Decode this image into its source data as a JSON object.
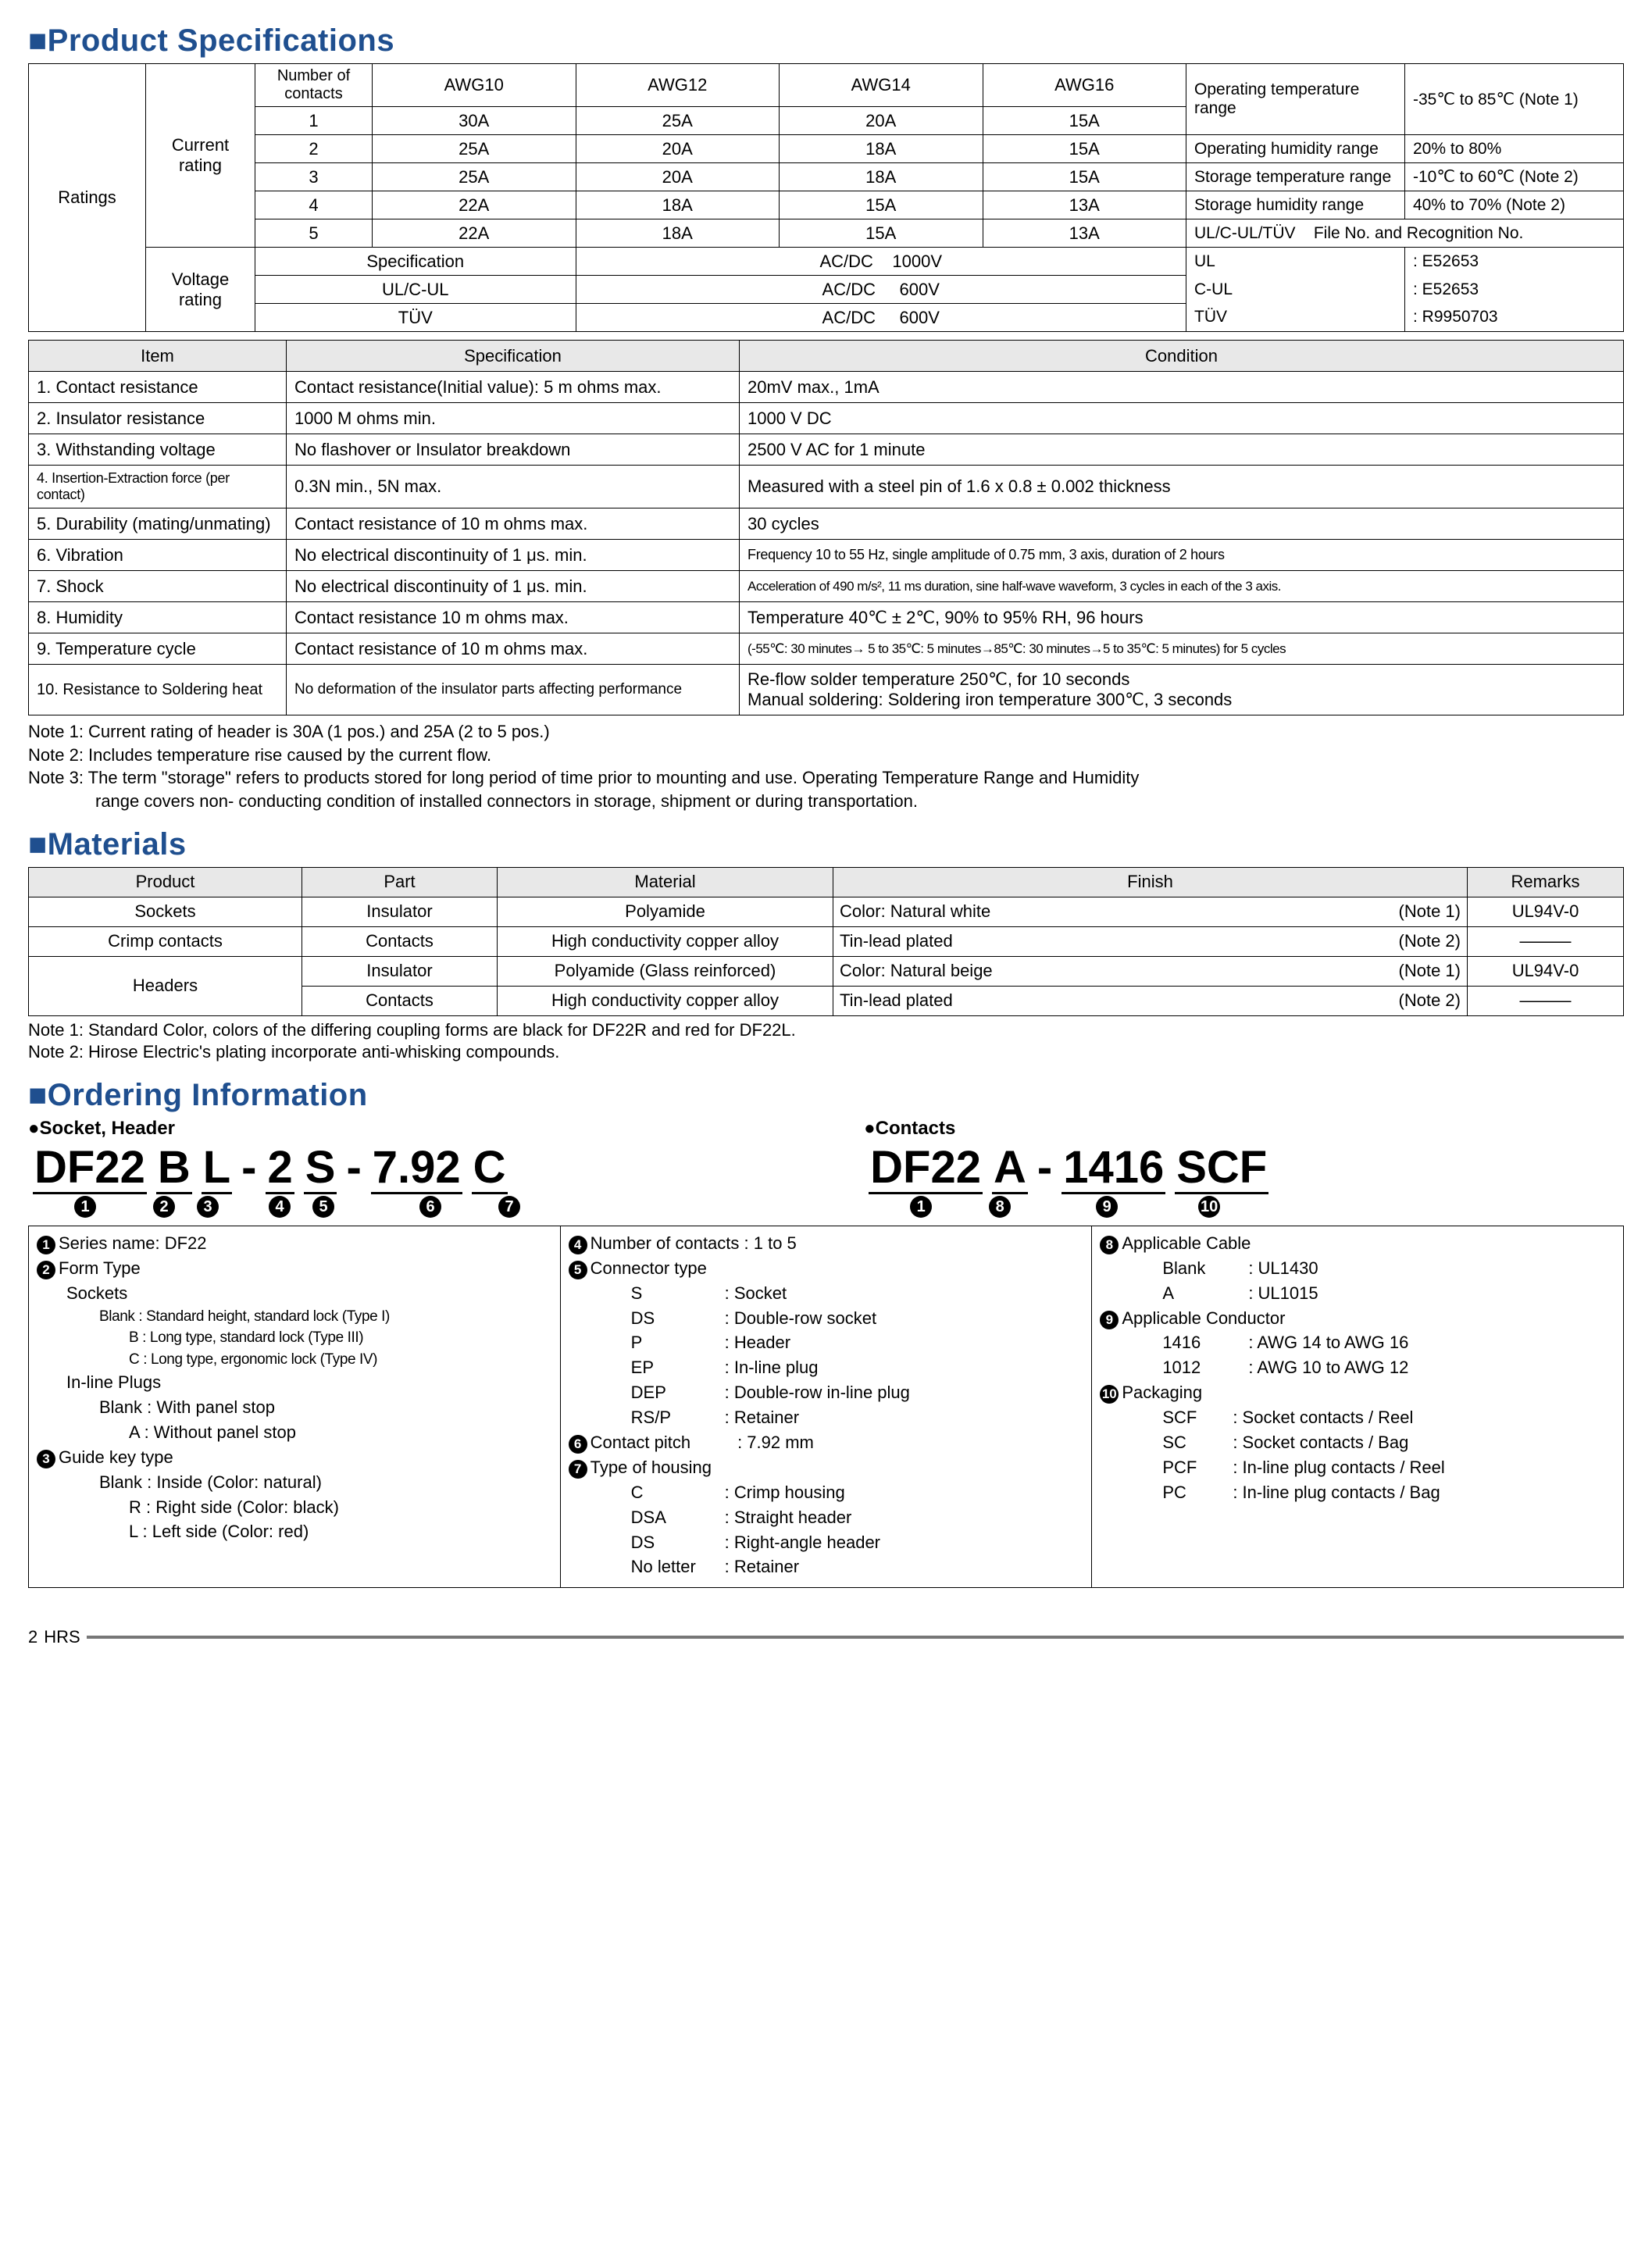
{
  "colors": {
    "heading": "#1f4f8f",
    "border": "#000000",
    "th_bg": "#e8e8e8"
  },
  "sec1_title": "Product Specifications",
  "sec2_title": "Materials",
  "sec3_title": "Ordering Information",
  "ratings": {
    "left_label": "Ratings",
    "current_label": "Current\nrating",
    "voltage_label": "Voltage\nrating",
    "head": [
      "Number of contacts",
      "AWG10",
      "AWG12",
      "AWG14",
      "AWG16"
    ],
    "rows": [
      [
        "1",
        "30A",
        "25A",
        "20A",
        "15A"
      ],
      [
        "2",
        "25A",
        "20A",
        "18A",
        "15A"
      ],
      [
        "3",
        "25A",
        "20A",
        "18A",
        "15A"
      ],
      [
        "4",
        "22A",
        "18A",
        "15A",
        "13A"
      ],
      [
        "5",
        "22A",
        "18A",
        "15A",
        "13A"
      ]
    ],
    "right": {
      "otr_l": "Operating temperature range",
      "otr_v": "-35℃ to 85℃ (Note 1)",
      "ohr_l": "Operating humidity range",
      "ohr_v": "20% to 80%",
      "str_l": "Storage temperature range",
      "str_v": "-10℃ to 60℃ (Note 2)",
      "shr_l": "Storage humidity range",
      "shr_v": "40% to 70% (Note 2)",
      "cert_head": "UL/C-UL/TÜV    File No. and Recognition No.",
      "ul": "UL",
      "ul_v": ": E52653",
      "cul": "C-UL",
      "cul_v": ": E52653",
      "tuv": "TÜV",
      "tuv_v": ": R9950703"
    },
    "volt_head": "Specification",
    "volt_rows": [
      [
        "Specification",
        "AC/DC    1000V"
      ],
      [
        "UL/C-UL",
        "AC/DC     600V"
      ],
      [
        "TÜV",
        "AC/DC     600V"
      ]
    ]
  },
  "spec": {
    "head": [
      "Item",
      "Specification",
      "Condition"
    ],
    "rows": [
      {
        "i": "1. Contact resistance",
        "s": "Contact resistance(Initial value): 5 m ohms max.",
        "c": "20mV max., 1mA"
      },
      {
        "i": "2. Insulator resistance",
        "s": "1000 M ohms min.",
        "c": "1000 V DC"
      },
      {
        "i": "3. Withstanding voltage",
        "s": "No flashover or Insulator breakdown",
        "c": "2500 V AC for 1 minute"
      },
      {
        "i": "4. Insertion-Extraction force (per contact)",
        "s": "0.3N min., 5N max.",
        "c": "Measured with a steel pin of 1.6 x 0.8 ± 0.002 thickness",
        "ishrink": true
      },
      {
        "i": "5. Durability (mating/unmating)",
        "s": "Contact resistance of 10 m ohms max.",
        "c": "30 cycles"
      },
      {
        "i": "6. Vibration",
        "s": "No electrical discontinuity of 1 μs. min.",
        "c": "Frequency 10 to 55 Hz, single amplitude of 0.75 mm, 3 axis, duration of 2 hours",
        "cshrink": true
      },
      {
        "i": "7. Shock",
        "s": "No electrical discontinuity of 1 μs. min.",
        "c": "Acceleration of 490 m/s², 11 ms duration, sine half-wave waveform, 3 cycles in each of the 3 axis.",
        "cshrink2": true
      },
      {
        "i": "8. Humidity",
        "s": "Contact resistance 10 m ohms max.",
        "c": "Temperature 40℃ ± 2℃, 90% to 95% RH, 96 hours"
      },
      {
        "i": "9. Temperature cycle",
        "s": "Contact resistance of 10 m ohms max.",
        "c": "(-55℃: 30 minutes→ 5 to 35℃: 5 minutes→85℃: 30 minutes→5 to 35℃: 5 minutes) for 5 cycles",
        "cshrink2": true
      },
      {
        "i": "10. Resistance to Soldering heat",
        "s": "No deformation of the insulator parts affecting performance",
        "c": "Re-flow solder temperature 250℃, for 10 seconds\nManual soldering: Soldering iron temperature 300℃, 3 seconds",
        "tall": true,
        "ishrink": false,
        "sshrink": true
      }
    ]
  },
  "notes": [
    "Note 1: Current rating of header is 30A (1 pos.) and 25A (2 to 5 pos.)",
    "Note 2: Includes temperature rise caused by the current flow.",
    "Note 3: The term \"storage\" refers to products stored for long period of time prior to mounting and use. Operating Temperature Range and Humidity range covers non- conducting condition of installed connectors in storage, shipment or during transportation."
  ],
  "materials": {
    "head": [
      "Product",
      "Part",
      "Material",
      "Finish",
      "Remarks"
    ],
    "rows": [
      [
        "Sockets",
        "Insulator",
        "Polyamide",
        "Color: Natural white",
        "(Note 1)",
        "UL94V-0"
      ],
      [
        "Crimp contacts",
        "Contacts",
        "High conductivity copper alloy",
        "Tin-lead plated",
        "(Note 2)",
        "———"
      ],
      [
        "Headers",
        "Insulator",
        "Polyamide (Glass reinforced)",
        "Color: Natural beige",
        "(Note 1)",
        "UL94V-0"
      ],
      [
        "",
        "Contacts",
        "High conductivity copper alloy",
        "Tin-lead plated",
        "(Note 2)",
        "———"
      ]
    ]
  },
  "matnotes": [
    "Note 1: Standard Color, colors of the differing coupling forms are black for DF22R and red for DF22L.",
    "Note 2: Hirose Electric's plating incorporate anti-whisking compounds."
  ],
  "ordering": {
    "sh_title": "●Socket, Header",
    "ct_title": "●Contacts",
    "part1": [
      "DF22",
      "B",
      "L",
      "-",
      "2",
      "S",
      "-",
      "7.92",
      "C"
    ],
    "part1_circ": [
      "❶",
      "❷",
      "❸",
      "",
      "❹",
      "❺",
      "",
      "❻",
      "❼"
    ],
    "part2": [
      "DF22",
      "A",
      "-",
      "1416",
      "SCF"
    ],
    "part2_circ": [
      "❶",
      "❽",
      "",
      "❾",
      "❿"
    ],
    "col1": {
      "l1": "Series name: DF22",
      "l2": "Form Type",
      "l2a": "Sockets",
      "l2a1": "Blank : Standard height, standard lock (Type I)",
      "l2a2": "B : Long type, standard lock (Type III)",
      "l2a3": "C : Long type, ergonomic lock (Type IV)",
      "l2b": "In-line Plugs",
      "l2b1": "Blank : With panel stop",
      "l2b2": "A : Without panel stop",
      "l3": "Guide key type",
      "l3a": "Blank : Inside (Color: natural)",
      "l3b": "R : Right side (Color: black)",
      "l3c": "L : Left side (Color: red)"
    },
    "col2": {
      "l4": "Number of contacts : 1 to 5",
      "l5": "Connector type",
      "l5opts": [
        [
          "S",
          ": Socket"
        ],
        [
          "DS",
          ": Double-row socket"
        ],
        [
          "P",
          ": Header"
        ],
        [
          "EP",
          ": In-line plug"
        ],
        [
          "DEP",
          ": Double-row in-line plug"
        ],
        [
          "RS/P",
          ": Retainer"
        ]
      ],
      "l6": "Contact pitch",
      "l6v": ": 7.92 mm",
      "l7": "Type of housing",
      "l7opts": [
        [
          "C",
          ": Crimp housing"
        ],
        [
          "DSA",
          ": Straight header"
        ],
        [
          "DS",
          ": Right-angle header"
        ],
        [
          "No letter",
          ": Retainer"
        ]
      ]
    },
    "col3": {
      "l8": "Applicable Cable",
      "l8opts": [
        [
          "Blank",
          ": UL1430"
        ],
        [
          "A",
          ": UL1015"
        ]
      ],
      "l9": "Applicable Conductor",
      "l9opts": [
        [
          "1416",
          ": AWG 14 to AWG 16"
        ],
        [
          "1012",
          ": AWG 10 to AWG 12"
        ]
      ],
      "l10": "Packaging",
      "l10opts": [
        [
          "SCF",
          ": Socket contacts / Reel"
        ],
        [
          "SC",
          ": Socket contacts / Bag"
        ],
        [
          "PCF",
          ": In-line plug contacts / Reel"
        ],
        [
          "PC",
          ": In-line plug contacts / Bag"
        ]
      ]
    }
  },
  "footer": {
    "page": "2",
    "logo": "HRS"
  }
}
